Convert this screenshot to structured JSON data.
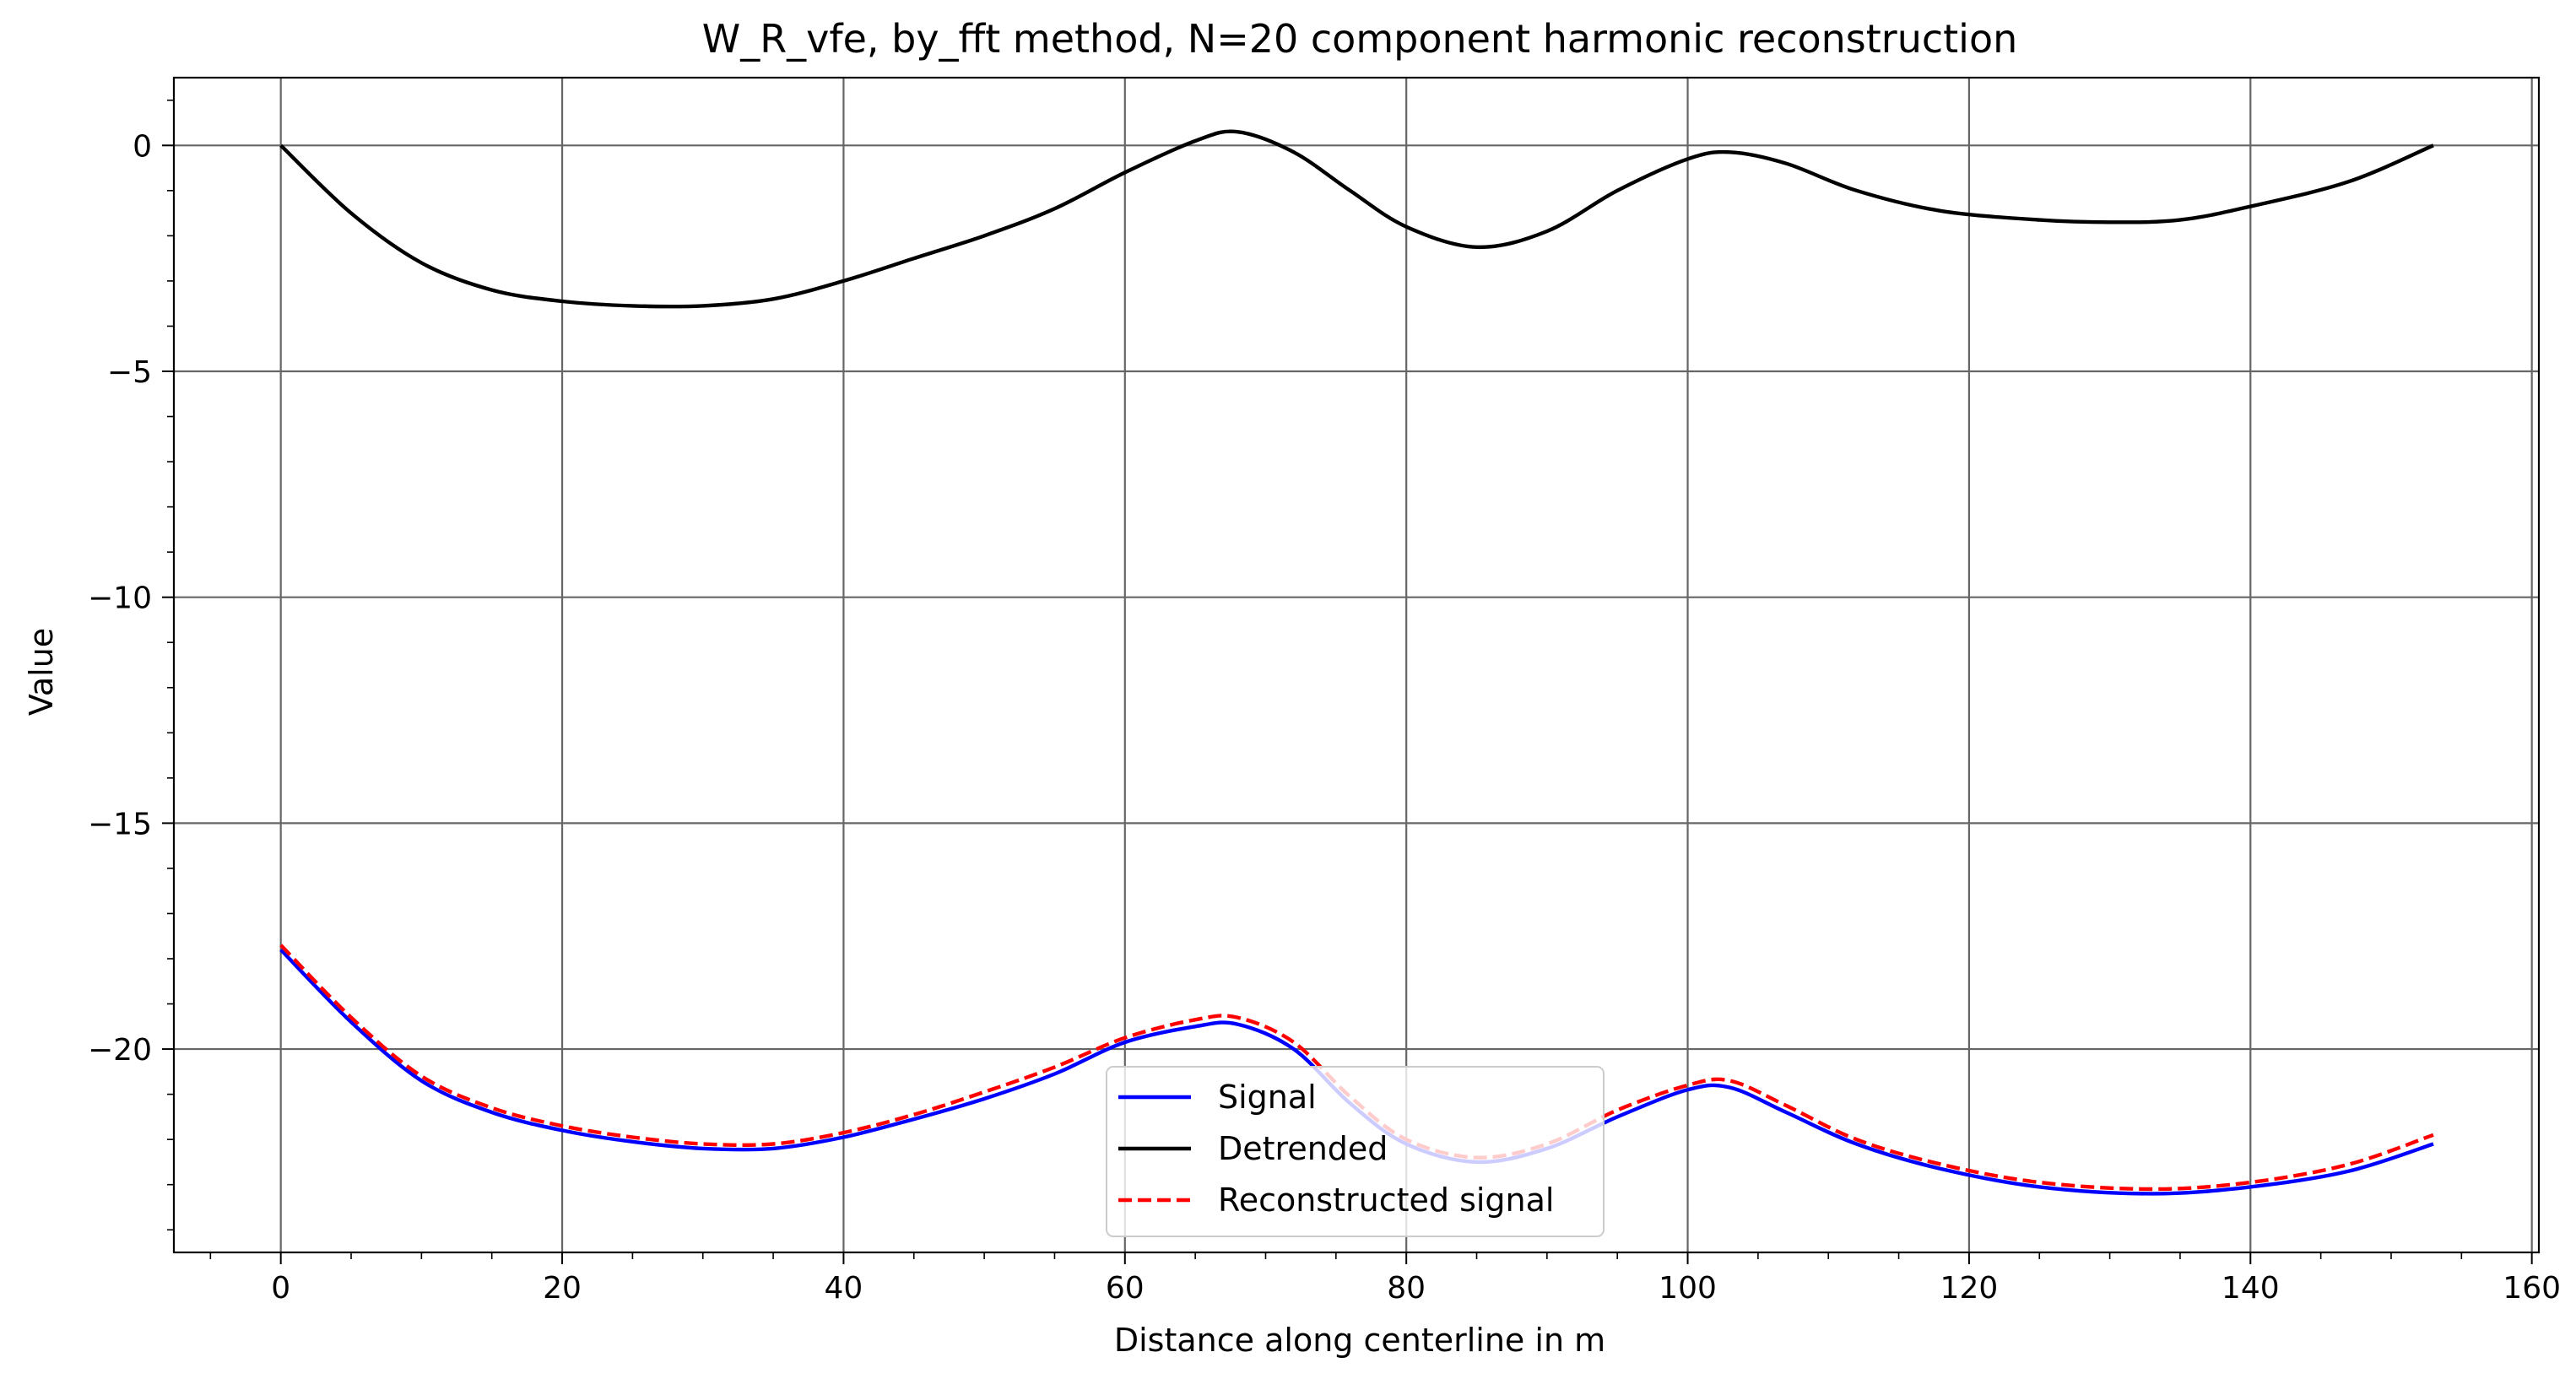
{
  "chart_data": {
    "type": "line",
    "title": "W_R_vfe, by_fft method, N=20 component harmonic reconstruction",
    "xlabel": "Distance along centerline in m",
    "ylabel": "Value",
    "xlim": [
      -7.6,
      160.5
    ],
    "ylim": [
      -24.5,
      1.5
    ],
    "x_ticks": [
      0,
      20,
      40,
      60,
      80,
      100,
      120,
      140,
      160
    ],
    "y_ticks": [
      0,
      -5,
      -10,
      -15,
      -20
    ],
    "x_tick_labels": [
      "0",
      "20",
      "40",
      "60",
      "80",
      "100",
      "120",
      "140",
      "160"
    ],
    "y_tick_labels": [
      "0",
      "−5",
      "−10",
      "−15",
      "−20"
    ],
    "grid": true,
    "legend_position": "bottom-center",
    "series": [
      {
        "name": "Signal",
        "color": "#0000ff",
        "style": "solid",
        "x": [
          0,
          5,
          10,
          15,
          20,
          25,
          30,
          35,
          40,
          45,
          50,
          55,
          60,
          65,
          68,
          72,
          76,
          80,
          85,
          90,
          95,
          100,
          103,
          107,
          112,
          118,
          125,
          133,
          140,
          147,
          153
        ],
        "y": [
          -17.8,
          -19.4,
          -20.7,
          -21.4,
          -21.8,
          -22.05,
          -22.2,
          -22.2,
          -21.95,
          -21.55,
          -21.1,
          -20.55,
          -19.85,
          -19.5,
          -19.45,
          -20.0,
          -21.2,
          -22.1,
          -22.5,
          -22.2,
          -21.5,
          -20.9,
          -20.85,
          -21.4,
          -22.1,
          -22.65,
          -23.05,
          -23.2,
          -23.05,
          -22.7,
          -22.1
        ]
      },
      {
        "name": "Detrended",
        "color": "#000000",
        "style": "solid",
        "x": [
          0,
          5,
          10,
          15,
          20,
          25,
          30,
          35,
          40,
          45,
          50,
          55,
          60,
          65,
          68,
          72,
          76,
          80,
          85,
          90,
          95,
          100,
          103,
          107,
          112,
          118,
          125,
          130,
          135,
          140,
          147,
          153
        ],
        "y": [
          0,
          -1.5,
          -2.6,
          -3.2,
          -3.45,
          -3.55,
          -3.55,
          -3.4,
          -3.0,
          -2.5,
          -2.0,
          -1.4,
          -0.6,
          0.1,
          0.3,
          -0.15,
          -1.0,
          -1.8,
          -2.25,
          -1.9,
          -1.0,
          -0.3,
          -0.15,
          -0.4,
          -1.0,
          -1.45,
          -1.65,
          -1.7,
          -1.65,
          -1.35,
          -0.8,
          0
        ]
      },
      {
        "name": "Reconstructed signal",
        "color": "#ff0000",
        "style": "dashed",
        "x": [
          0,
          5,
          10,
          15,
          20,
          25,
          30,
          35,
          40,
          45,
          50,
          55,
          60,
          65,
          68,
          72,
          76,
          80,
          85,
          90,
          95,
          100,
          103,
          107,
          112,
          118,
          125,
          133,
          140,
          147,
          153
        ],
        "y": [
          -17.7,
          -19.3,
          -20.6,
          -21.3,
          -21.7,
          -21.95,
          -22.1,
          -22.1,
          -21.85,
          -21.45,
          -20.95,
          -20.4,
          -19.75,
          -19.35,
          -19.3,
          -19.85,
          -21.05,
          -22.0,
          -22.4,
          -22.1,
          -21.35,
          -20.8,
          -20.7,
          -21.25,
          -22.0,
          -22.55,
          -22.95,
          -23.1,
          -22.95,
          -22.55,
          -21.9
        ]
      }
    ]
  }
}
